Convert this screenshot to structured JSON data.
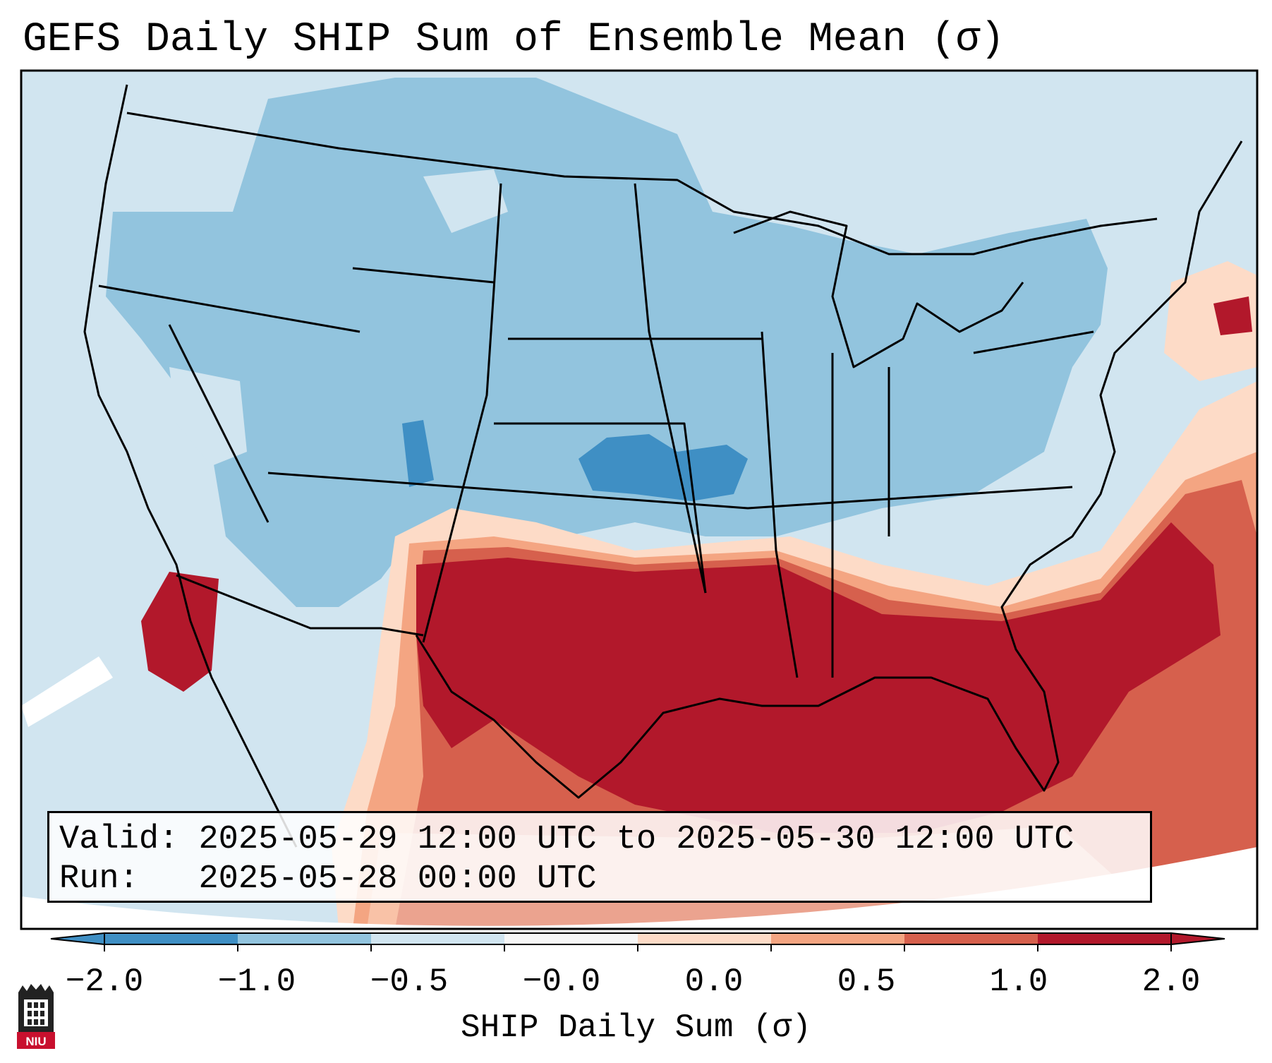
{
  "title": "GEFS Daily SHIP Sum of Ensemble Mean (σ)",
  "info": {
    "valid_label": "Valid:",
    "valid_value": "2025-05-29 12:00 UTC to 2025-05-30 12:00 UTC",
    "run_label": "Run:",
    "run_value": "2025-05-28 00:00 UTC"
  },
  "colorbar": {
    "label": "SHIP Daily Sum (σ)",
    "ticks": [
      "−2.0",
      "−1.0",
      "−0.5",
      "−0.0",
      "0.0",
      "0.5",
      "1.0",
      "2.0"
    ],
    "colors": [
      "#3f8fc4",
      "#92c4de",
      "#d1e5f0",
      "#f7f7f7",
      "#fddbc7",
      "#f4a582",
      "#d6604d",
      "#b2182b"
    ],
    "extend": "both"
  },
  "map": {
    "region": "Contiguous United States",
    "dominant_field": "negative SHIP anomaly over western and central U.S.",
    "highlight": "strong positive anomaly over Gulf Coast and Southeast"
  },
  "logo": {
    "text": "NIU"
  }
}
